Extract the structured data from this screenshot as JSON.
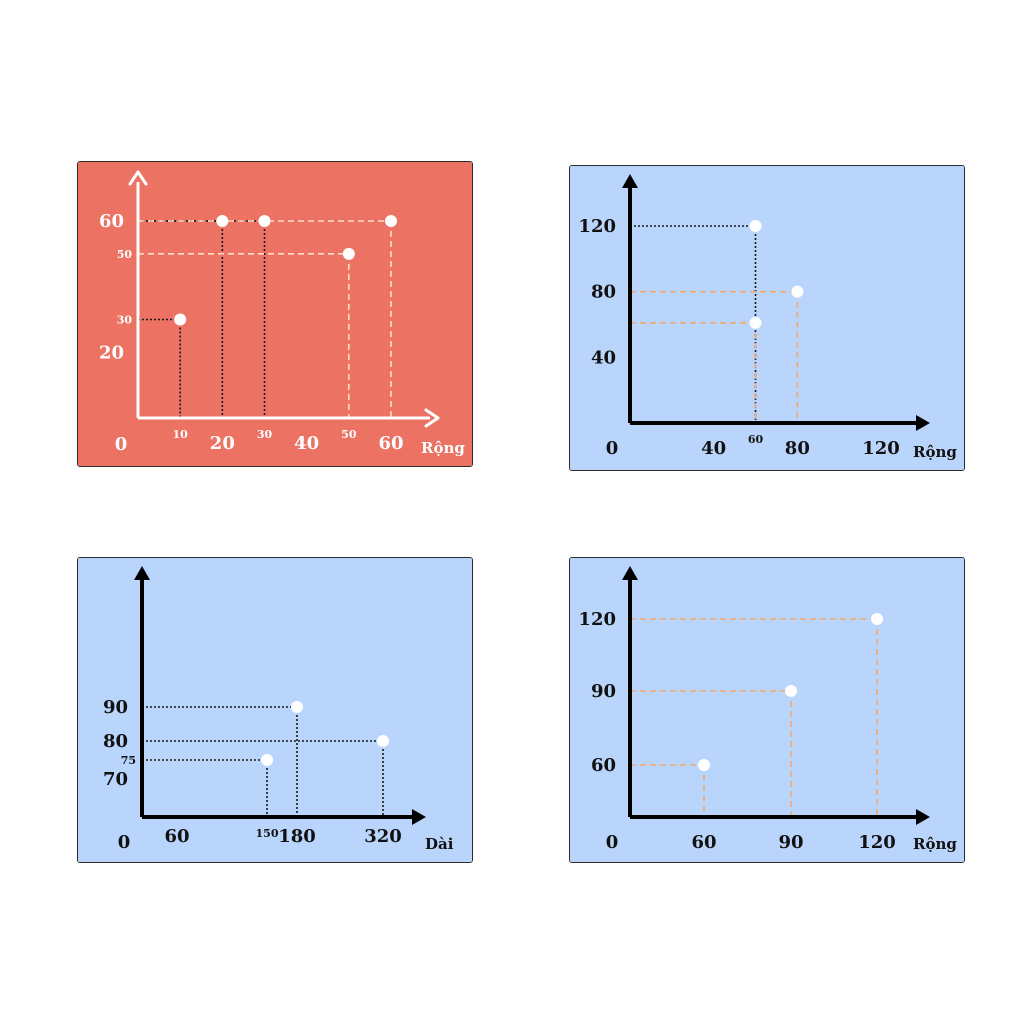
{
  "chart_data": [
    {
      "type": "scatter",
      "background": "#ec7264",
      "axis_color": "#ffffff",
      "text_color": "#ffffff",
      "origin_label": "0",
      "xlabel": "Rộng",
      "ylabel": "",
      "x_ticks": [
        "20",
        "40",
        "60"
      ],
      "y_ticks": [
        "20",
        "60"
      ],
      "points": [
        {
          "x": 10,
          "y": 30,
          "x_label": "10",
          "y_label": "30",
          "guide": "dotted",
          "guide_color": "#1a1a1a"
        },
        {
          "x": 20,
          "y": 60,
          "x_label": "",
          "y_label": "",
          "guide": "dotted",
          "guide_color": "#1a1a1a"
        },
        {
          "x": 30,
          "y": 60,
          "x_label": "30",
          "y_label": "",
          "guide": "dotted",
          "guide_color": "#1a1a1a"
        },
        {
          "x": 50,
          "y": 50,
          "x_label": "50",
          "y_label": "50",
          "guide": "dashed",
          "guide_color": "#fde0c8"
        },
        {
          "x": 60,
          "y": 60,
          "x_label": "",
          "y_label": "",
          "guide": "dashed",
          "guide_color": "#fde0c8"
        }
      ]
    },
    {
      "type": "scatter",
      "background": "#bad5fb",
      "axis_color": "#000000",
      "text_color": "#111111",
      "origin_label": "0",
      "xlabel": "Rộng",
      "ylabel": "",
      "x_ticks": [
        "40",
        "80",
        "120"
      ],
      "y_ticks": [
        "40",
        "80",
        "120"
      ],
      "points": [
        {
          "x": 60,
          "y": 120,
          "x_label": "60",
          "y_label": "",
          "guide": "dotted",
          "guide_color": "#1a1a1a"
        },
        {
          "x": 80,
          "y": 80,
          "x_label": "",
          "y_label": "",
          "guide": "dashed",
          "guide_color": "#f3a96e"
        },
        {
          "x": 60,
          "y": 61,
          "x_label": "",
          "y_label": "",
          "guide": "dashed",
          "guide_color": "#f3a96e"
        }
      ]
    },
    {
      "type": "scatter",
      "background": "#bad5fb",
      "axis_color": "#000000",
      "text_color": "#111111",
      "origin_label": "0",
      "xlabel": "Dài",
      "ylabel": "",
      "x_ticks": [
        "60",
        "180",
        "320"
      ],
      "y_ticks": [
        "70",
        "80",
        "90"
      ],
      "points": [
        {
          "x": 150,
          "y": 75,
          "x_label": "150",
          "y_label": "75",
          "guide": "dotted",
          "guide_color": "#1a1a1a"
        },
        {
          "x": 180,
          "y": 90,
          "x_label": "",
          "y_label": "",
          "guide": "dotted",
          "guide_color": "#1a1a1a"
        },
        {
          "x": 320,
          "y": 80,
          "x_label": "",
          "y_label": "",
          "guide": "dotted",
          "guide_color": "#1a1a1a"
        }
      ]
    },
    {
      "type": "scatter",
      "background": "#bad5fb",
      "axis_color": "#000000",
      "text_color": "#111111",
      "origin_label": "0",
      "xlabel": "Rộng",
      "ylabel": "",
      "x_ticks": [
        "60",
        "90",
        "120"
      ],
      "y_ticks": [
        "60",
        "90",
        "120"
      ],
      "points": [
        {
          "x": 60,
          "y": 60,
          "x_label": "",
          "y_label": "",
          "guide": "dashed",
          "guide_color": "#f3a96e"
        },
        {
          "x": 90,
          "y": 90,
          "x_label": "",
          "y_label": "",
          "guide": "dashed",
          "guide_color": "#f3a96e"
        },
        {
          "x": 120,
          "y": 120,
          "x_label": "",
          "y_label": "",
          "guide": "dashed",
          "guide_color": "#f3a96e"
        }
      ]
    }
  ]
}
